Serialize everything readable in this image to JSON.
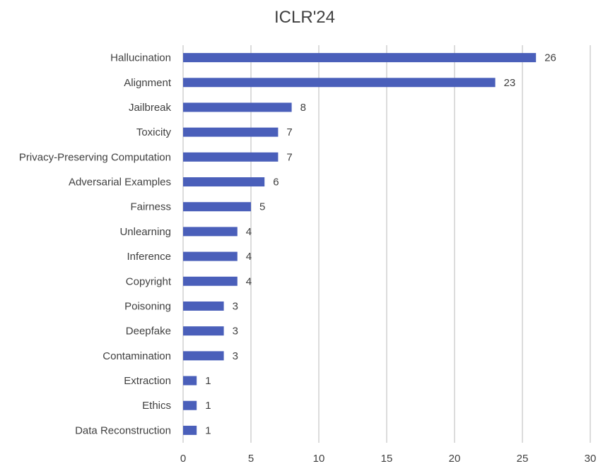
{
  "chart_data": {
    "type": "bar",
    "orientation": "horizontal",
    "title": "ICLR'24",
    "xlabel": "",
    "ylabel": "",
    "categories": [
      "Hallucination",
      "Alignment",
      "Jailbreak",
      "Toxicity",
      "Privacy-Preserving Computation",
      "Adversarial Examples",
      "Fairness",
      "Unlearning",
      "Inference",
      "Copyright",
      "Poisoning",
      "Deepfake",
      "Contamination",
      "Extraction",
      "Ethics",
      "Data Reconstruction"
    ],
    "values": [
      26,
      23,
      8,
      7,
      7,
      6,
      5,
      4,
      4,
      4,
      3,
      3,
      3,
      1,
      1,
      1
    ],
    "xlim": [
      0,
      30
    ],
    "xticks": [
      0,
      5,
      10,
      15,
      20,
      25,
      30
    ],
    "grid": "vertical",
    "legend": "none",
    "bar_color": "#4a5fba",
    "grid_color": "#d0d0d0"
  }
}
